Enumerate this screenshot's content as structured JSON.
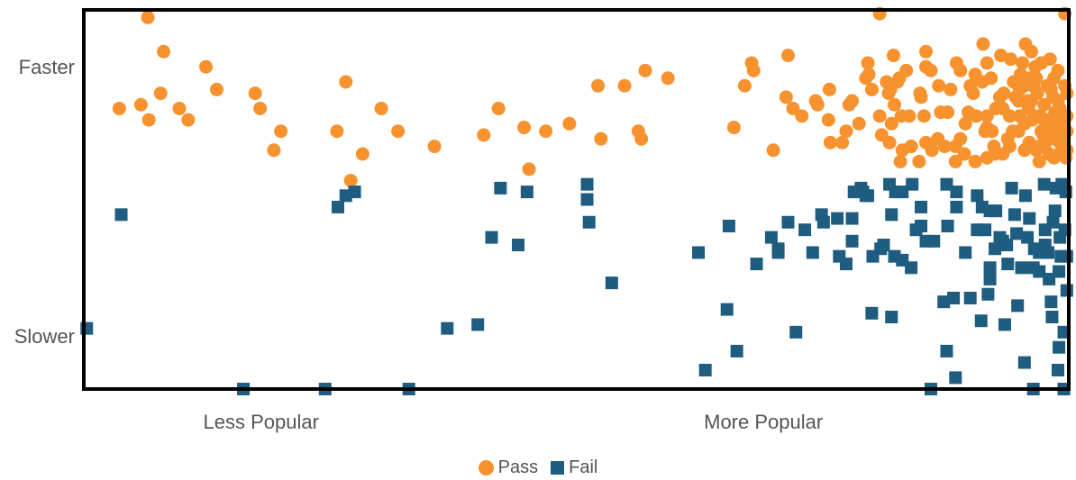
{
  "colors": {
    "pass": "#F7922E",
    "fail": "#1E5C80",
    "axis": "#000000"
  },
  "chart_data": {
    "type": "scatter",
    "title": "",
    "xlabel": "",
    "ylabel": "",
    "xlim": [
      0,
      100
    ],
    "ylim": [
      0,
      100
    ],
    "x_ticks": [
      {
        "value": 18,
        "label": "Less Popular"
      },
      {
        "value": 69,
        "label": "More Popular"
      }
    ],
    "y_ticks": [
      {
        "value": 85,
        "label": "Faster"
      },
      {
        "value": 14,
        "label": "Slower"
      }
    ],
    "legend": {
      "position": "bottom-center",
      "entries": [
        "Pass",
        "Fail"
      ]
    },
    "series": [
      {
        "name": "Pass",
        "marker": "circle",
        "points": [
          [
            6.5,
            98
          ],
          [
            8.1,
            89
          ],
          [
            12.4,
            85
          ],
          [
            7.8,
            78
          ],
          [
            13.5,
            79
          ],
          [
            3.6,
            74
          ],
          [
            5.8,
            75
          ],
          [
            6.6,
            71
          ],
          [
            9.7,
            74
          ],
          [
            10.6,
            71
          ],
          [
            17.4,
            78
          ],
          [
            17.9,
            74
          ],
          [
            20.0,
            68
          ],
          [
            19.3,
            63
          ],
          [
            25.7,
            68
          ],
          [
            26.6,
            81
          ],
          [
            28.3,
            62
          ],
          [
            30.2,
            74
          ],
          [
            31.9,
            68
          ],
          [
            27.1,
            55
          ],
          [
            35.6,
            64
          ],
          [
            40.6,
            67
          ],
          [
            42.1,
            74
          ],
          [
            44.7,
            69
          ],
          [
            45.2,
            58
          ],
          [
            46.9,
            68
          ],
          [
            49.3,
            70
          ],
          [
            52.2,
            80
          ],
          [
            52.5,
            66
          ],
          [
            54.9,
            80
          ],
          [
            56.3,
            68
          ],
          [
            56.6,
            66
          ],
          [
            57.0,
            84
          ],
          [
            59.3,
            82
          ],
          [
            66.0,
            69
          ],
          [
            67.1,
            80
          ],
          [
            67.8,
            86
          ],
          [
            68.0,
            84
          ],
          [
            71.5,
            88
          ],
          [
            72.9,
            72
          ],
          [
            74.5,
            75
          ],
          [
            72.0,
            74
          ],
          [
            70.0,
            63
          ],
          [
            71.3,
            77
          ],
          [
            74.3,
            76
          ],
          [
            75.6,
            71
          ],
          [
            75.7,
            79
          ],
          [
            80.8,
            99
          ],
          [
            81.0,
            67
          ],
          [
            82.0,
            70
          ],
          [
            83.0,
            72
          ],
          [
            84.0,
            64
          ],
          [
            85.5,
            65
          ],
          [
            86.7,
            66
          ],
          [
            88.5,
            64
          ],
          [
            87.0,
            73
          ],
          [
            88.0,
            79
          ],
          [
            89.5,
            70
          ],
          [
            90.0,
            80
          ],
          [
            88.6,
            86
          ],
          [
            90.6,
            72
          ],
          [
            91.7,
            72
          ],
          [
            92.4,
            64
          ],
          [
            93.3,
            74
          ],
          [
            94.0,
            72
          ],
          [
            95.0,
            79
          ],
          [
            96.2,
            76
          ],
          [
            97.1,
            72
          ],
          [
            98.0,
            68
          ],
          [
            95.5,
            70
          ],
          [
            93.1,
            88
          ],
          [
            94.9,
            68
          ],
          [
            96.0,
            65
          ],
          [
            97.0,
            64
          ],
          [
            98.5,
            82
          ],
          [
            98.9,
            84
          ],
          [
            98.4,
            77
          ],
          [
            99.0,
            70
          ],
          [
            97.2,
            68
          ],
          [
            97.5,
            75
          ],
          [
            99.5,
            64
          ],
          [
            99.5,
            66
          ],
          [
            99.8,
            68
          ],
          [
            99.8,
            72
          ],
          [
            99.8,
            78
          ],
          [
            99.6,
            80
          ],
          [
            99.1,
            74
          ],
          [
            98.2,
            79
          ],
          [
            96.4,
            80
          ],
          [
            95.1,
            83
          ],
          [
            96.6,
            85
          ],
          [
            97.2,
            86
          ],
          [
            98.1,
            87
          ],
          [
            96.7,
            82
          ],
          [
            96.8,
            78
          ],
          [
            96.0,
            82
          ],
          [
            95.8,
            76
          ],
          [
            95.0,
            72
          ],
          [
            94.6,
            77
          ],
          [
            99.8,
            63
          ],
          [
            99.1,
            65
          ],
          [
            98.7,
            69
          ],
          [
            98.9,
            76
          ],
          [
            93.4,
            78
          ],
          [
            94.4,
            81
          ],
          [
            94.3,
            68
          ],
          [
            92.6,
            74
          ],
          [
            91.2,
            81
          ],
          [
            91.7,
            86
          ],
          [
            90.3,
            78
          ],
          [
            81.5,
            81
          ],
          [
            83.5,
            84
          ],
          [
            81.7,
            78
          ],
          [
            82.3,
            75
          ],
          [
            84.9,
            78
          ],
          [
            81.9,
            79
          ],
          [
            82.2,
            88
          ],
          [
            79.6,
            86
          ],
          [
            79.7,
            83
          ],
          [
            78.0,
            76
          ],
          [
            83.8,
            72
          ],
          [
            85.0,
            77
          ],
          [
            77.0,
            65
          ],
          [
            80.0,
            79
          ],
          [
            82.6,
            81
          ],
          [
            77.4,
            68
          ],
          [
            85.3,
            72
          ],
          [
            82.8,
            82
          ],
          [
            85.5,
            85
          ],
          [
            86.8,
            80
          ],
          [
            87.7,
            73
          ],
          [
            89.0,
            84
          ],
          [
            89.8,
            73
          ],
          [
            90.5,
            83
          ],
          [
            91.7,
            69
          ],
          [
            92.1,
            82
          ],
          [
            93.0,
            77
          ],
          [
            93.8,
            66
          ],
          [
            94.9,
            76
          ],
          [
            95.3,
            86
          ],
          [
            99.6,
            99
          ],
          [
            85.5,
            89
          ],
          [
            86.0,
            84
          ],
          [
            79.4,
            82
          ],
          [
            77.7,
            75
          ],
          [
            78.7,
            70
          ],
          [
            75.8,
            65
          ],
          [
            80.8,
            72
          ],
          [
            81.8,
            65
          ],
          [
            83.1,
            63
          ],
          [
            82.9,
            60
          ],
          [
            84.8,
            60
          ],
          [
            86.1,
            63
          ],
          [
            87.4,
            64
          ],
          [
            88.5,
            60
          ],
          [
            89.4,
            62
          ],
          [
            89.0,
            66
          ],
          [
            90.5,
            60
          ],
          [
            91.7,
            61
          ],
          [
            92.5,
            62
          ],
          [
            93.3,
            62
          ],
          [
            94.0,
            64
          ],
          [
            95.5,
            63
          ],
          [
            96.0,
            65
          ],
          [
            97.5,
            64
          ],
          [
            98.0,
            62
          ],
          [
            99.0,
            62
          ],
          [
            98.5,
            61
          ],
          [
            99.7,
            61
          ],
          [
            97.0,
            60
          ],
          [
            91.3,
            91
          ],
          [
            91.5,
            68
          ],
          [
            92.2,
            68
          ],
          [
            95.6,
            91
          ],
          [
            96.2,
            89
          ],
          [
            94.1,
            87
          ],
          [
            95.9,
            74
          ],
          [
            97.8,
            71
          ],
          [
            99.4,
            71
          ],
          [
            97.8,
            80
          ],
          [
            98.6,
            73
          ],
          [
            97.5,
            71
          ],
          [
            96.9,
            72
          ],
          [
            95.5,
            80
          ],
          [
            96.3,
            71
          ],
          [
            98.2,
            66
          ],
          [
            99.3,
            67
          ],
          [
            97.4,
            67
          ],
          [
            96.7,
            63
          ]
        ]
      },
      {
        "name": "Fail",
        "marker": "square",
        "points": [
          [
            0.3,
            16
          ],
          [
            3.8,
            46
          ],
          [
            16.2,
            0
          ],
          [
            24.5,
            0
          ],
          [
            33.0,
            0
          ],
          [
            25.8,
            48
          ],
          [
            26.6,
            51
          ],
          [
            27.5,
            52
          ],
          [
            36.9,
            16
          ],
          [
            40.0,
            17
          ],
          [
            41.4,
            40
          ],
          [
            42.3,
            53
          ],
          [
            44.1,
            38
          ],
          [
            45.0,
            52
          ],
          [
            51.1,
            54
          ],
          [
            51.1,
            50
          ],
          [
            51.3,
            44
          ],
          [
            53.6,
            28
          ],
          [
            62.4,
            36
          ],
          [
            63.1,
            5
          ],
          [
            65.5,
            43
          ],
          [
            66.3,
            10
          ],
          [
            68.3,
            33
          ],
          [
            70.5,
            37
          ],
          [
            70.5,
            36
          ],
          [
            71.5,
            44
          ],
          [
            72.3,
            15
          ],
          [
            73.2,
            42
          ],
          [
            74.0,
            36
          ],
          [
            74.9,
            46
          ],
          [
            76.5,
            45
          ],
          [
            78.0,
            45
          ],
          [
            78.2,
            52
          ],
          [
            78.9,
            53
          ],
          [
            79.1,
            52
          ],
          [
            79.4,
            51
          ],
          [
            79.6,
            51
          ],
          [
            80.0,
            20
          ],
          [
            80.1,
            35
          ],
          [
            80.9,
            37
          ],
          [
            81.8,
            54
          ],
          [
            81.2,
            38
          ],
          [
            82.0,
            46
          ],
          [
            82.0,
            19
          ],
          [
            83.1,
            34
          ],
          [
            83.1,
            52
          ],
          [
            84.1,
            54
          ],
          [
            84.5,
            42
          ],
          [
            85.0,
            48
          ],
          [
            85.0,
            43
          ],
          [
            85.5,
            39
          ],
          [
            86.0,
            0
          ],
          [
            86.3,
            39
          ],
          [
            87.3,
            23
          ],
          [
            87.6,
            10
          ],
          [
            87.6,
            54
          ],
          [
            87.7,
            43
          ],
          [
            88.5,
            3
          ],
          [
            88.6,
            52
          ],
          [
            88.6,
            48
          ],
          [
            89.5,
            36
          ],
          [
            90.0,
            24
          ],
          [
            90.7,
            51
          ],
          [
            90.7,
            42
          ],
          [
            91.2,
            48
          ],
          [
            91.5,
            42
          ],
          [
            91.8,
            25
          ],
          [
            92.0,
            47
          ],
          [
            92.0,
            32
          ],
          [
            92.5,
            37
          ],
          [
            92.6,
            47
          ],
          [
            93.0,
            40
          ],
          [
            93.3,
            39
          ],
          [
            93.7,
            38
          ],
          [
            93.8,
            33
          ],
          [
            94.2,
            53
          ],
          [
            94.5,
            46
          ],
          [
            94.7,
            41
          ],
          [
            95.2,
            32
          ],
          [
            95.6,
            51
          ],
          [
            95.8,
            40
          ],
          [
            96.0,
            45
          ],
          [
            96.5,
            37
          ],
          [
            97.0,
            31
          ],
          [
            97.0,
            36
          ],
          [
            97.5,
            54
          ],
          [
            97.6,
            38
          ],
          [
            98.0,
            29
          ],
          [
            98.4,
            44
          ],
          [
            98.6,
            47
          ],
          [
            98.9,
            5
          ],
          [
            99.0,
            11
          ],
          [
            99.5,
            15
          ],
          [
            99.8,
            26
          ],
          [
            99.8,
            35
          ],
          [
            99.7,
            52
          ],
          [
            99.3,
            54
          ],
          [
            99.1,
            40
          ],
          [
            98.7,
            53
          ],
          [
            98.3,
            19
          ],
          [
            99.5,
            0
          ],
          [
            96.4,
            0
          ],
          [
            97.6,
            42
          ],
          [
            96.4,
            32
          ],
          [
            99.6,
            42
          ],
          [
            98.2,
            23
          ],
          [
            99.0,
            31
          ],
          [
            99.2,
            35
          ],
          [
            97.9,
            36
          ],
          [
            95.5,
            7
          ],
          [
            94.8,
            22
          ],
          [
            93.5,
            17
          ],
          [
            92.0,
            29
          ],
          [
            91.1,
            18
          ],
          [
            88.3,
            24
          ],
          [
            82.3,
            35
          ],
          [
            77.4,
            33
          ],
          [
            82.4,
            52
          ],
          [
            75.1,
            44
          ],
          [
            69.8,
            40
          ],
          [
            65.3,
            21
          ],
          [
            76.7,
            35
          ],
          [
            78.0,
            39
          ],
          [
            84.0,
            32
          ]
        ]
      }
    ]
  },
  "legend_labels": {
    "pass": "Pass",
    "fail": "Fail"
  }
}
